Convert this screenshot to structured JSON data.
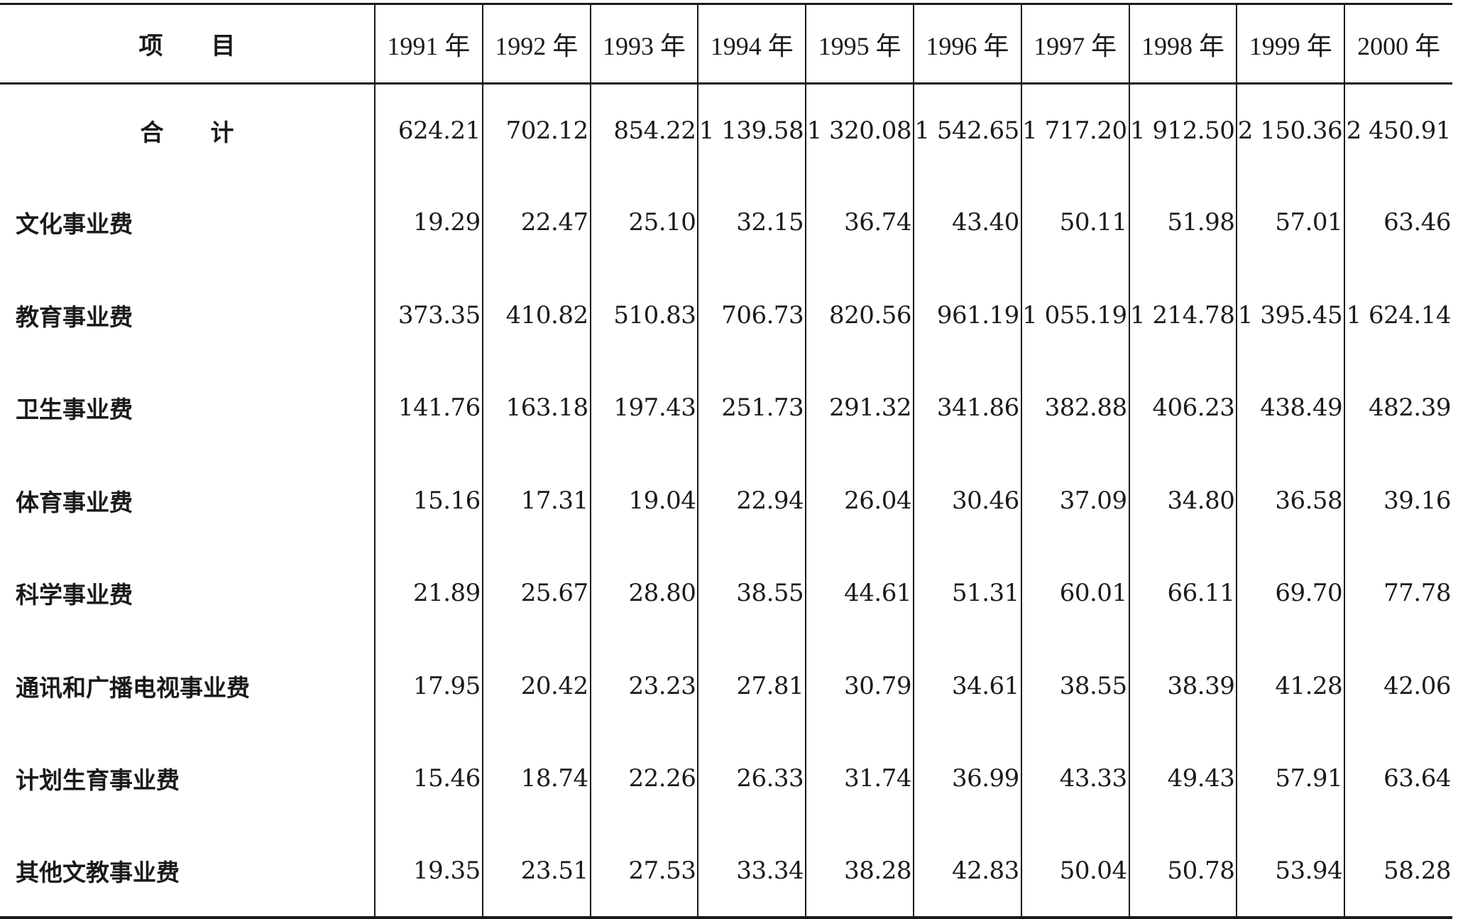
{
  "table": {
    "header": {
      "item_label": "项　　目",
      "years": [
        "1991 年",
        "1992 年",
        "1993 年",
        "1994 年",
        "1995 年",
        "1996 年",
        "1997 年",
        "1998 年",
        "1999 年",
        "2000 年"
      ]
    },
    "rows": [
      {
        "label": "合　　计",
        "values": [
          "624.21",
          "702.12",
          "854.22",
          "1 139.58",
          "1 320.08",
          "1 542.65",
          "1 717.20",
          "1 912.50",
          "2 150.36",
          "2 450.91"
        ]
      },
      {
        "label": "文化事业费",
        "values": [
          "19.29",
          "22.47",
          "25.10",
          "32.15",
          "36.74",
          "43.40",
          "50.11",
          "51.98",
          "57.01",
          "63.46"
        ]
      },
      {
        "label": "教育事业费",
        "values": [
          "373.35",
          "410.82",
          "510.83",
          "706.73",
          "820.56",
          "961.19",
          "1 055.19",
          "1 214.78",
          "1 395.45",
          "1 624.14"
        ]
      },
      {
        "label": "卫生事业费",
        "values": [
          "141.76",
          "163.18",
          "197.43",
          "251.73",
          "291.32",
          "341.86",
          "382.88",
          "406.23",
          "438.49",
          "482.39"
        ]
      },
      {
        "label": "体育事业费",
        "values": [
          "15.16",
          "17.31",
          "19.04",
          "22.94",
          "26.04",
          "30.46",
          "37.09",
          "34.80",
          "36.58",
          "39.16"
        ]
      },
      {
        "label": "科学事业费",
        "values": [
          "21.89",
          "25.67",
          "28.80",
          "38.55",
          "44.61",
          "51.31",
          "60.01",
          "66.11",
          "69.70",
          "77.78"
        ]
      },
      {
        "label": "通讯和广播电视事业费",
        "values": [
          "17.95",
          "20.42",
          "23.23",
          "27.81",
          "30.79",
          "34.61",
          "38.55",
          "38.39",
          "41.28",
          "42.06"
        ]
      },
      {
        "label": "计划生育事业费",
        "values": [
          "15.46",
          "18.74",
          "22.26",
          "26.33",
          "31.74",
          "36.99",
          "43.33",
          "49.43",
          "57.91",
          "63.64"
        ]
      },
      {
        "label": "其他文教事业费",
        "values": [
          "19.35",
          "23.51",
          "27.53",
          "33.34",
          "38.28",
          "42.83",
          "50.04",
          "50.78",
          "53.94",
          "58.28"
        ]
      }
    ]
  }
}
